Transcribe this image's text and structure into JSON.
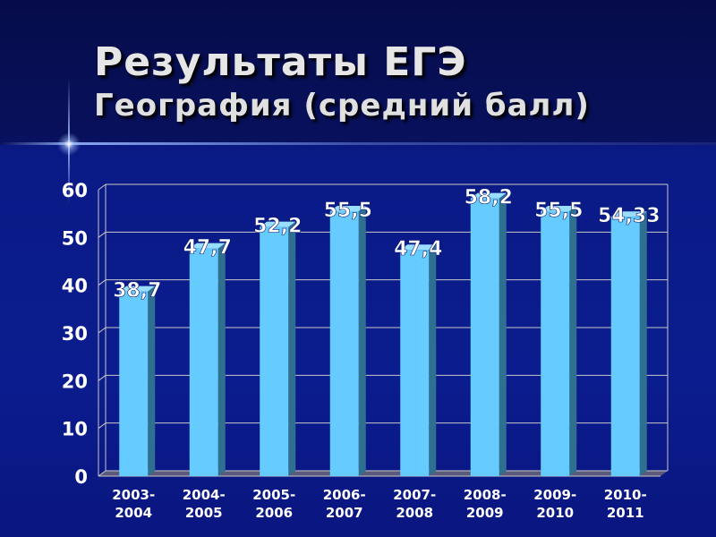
{
  "slide": {
    "title": "Результаты ЕГЭ",
    "subtitle": "География (средний балл)"
  },
  "chart_data": {
    "type": "bar",
    "categories": [
      [
        "2003-",
        "2004"
      ],
      [
        "2004-",
        "2005"
      ],
      [
        "2005-",
        "2006"
      ],
      [
        "2006-",
        "2007"
      ],
      [
        "2007-",
        "2008"
      ],
      [
        "2008-",
        "2009"
      ],
      [
        "2009-",
        "2010"
      ],
      [
        "2010-",
        "2011"
      ]
    ],
    "values": [
      38.7,
      47.7,
      52.2,
      55.5,
      47.4,
      58.2,
      55.5,
      54.33
    ],
    "data_labels": [
      "38,7",
      "47,7",
      "52,2",
      "55,5",
      "47,4",
      "58,2",
      "55,5",
      "54,33"
    ],
    "ylim": [
      0,
      60
    ],
    "yticks": [
      0,
      10,
      20,
      30,
      40,
      50,
      60
    ],
    "grid": true,
    "legend": "none",
    "colors": {
      "bar_front": "#66ccff",
      "bar_side": "#2f7090",
      "bar_top": "#99ddff",
      "grid": "#c8c8c8",
      "text": "#ffffff",
      "background": "#0b1c8e"
    }
  }
}
